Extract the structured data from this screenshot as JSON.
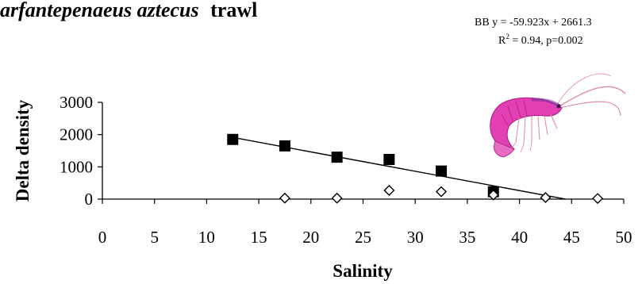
{
  "chart_data": {
    "type": "scatter",
    "title_species": "arfantepenaeus aztecus",
    "title_suffix": "trawl",
    "equation": "BB y = -59.923x + 2661.3",
    "r2_prefix": "R",
    "r2_suffix": " = 0.94, p=0.002",
    "xlabel": "Salinity",
    "ylabel": "Delta density",
    "xlim": [
      0,
      50
    ],
    "ylim": [
      0,
      3000
    ],
    "xticks": [
      0,
      5,
      10,
      15,
      20,
      25,
      30,
      35,
      40,
      45,
      50
    ],
    "yticks": [
      0,
      1000,
      2000,
      3000
    ],
    "series": [
      {
        "marker": "filled-square",
        "color": "#000000",
        "x": [
          12.5,
          17.5,
          22.5,
          27.5,
          32.5,
          37.5
        ],
        "y": [
          1850,
          1650,
          1300,
          1230,
          870,
          230
        ]
      },
      {
        "marker": "open-diamond",
        "color": "#000000",
        "x": [
          17.5,
          22.5,
          27.5,
          32.5,
          37.5,
          42.5,
          47.5
        ],
        "y": [
          30,
          30,
          270,
          230,
          130,
          50,
          20
        ]
      }
    ],
    "trendline": {
      "slope": -59.923,
      "intercept": 2661.3,
      "x_start": 12.5,
      "x_end": 44.4
    },
    "legend": "none",
    "grid": false
  },
  "icons": {
    "illustration": "shrimp-illustration"
  }
}
